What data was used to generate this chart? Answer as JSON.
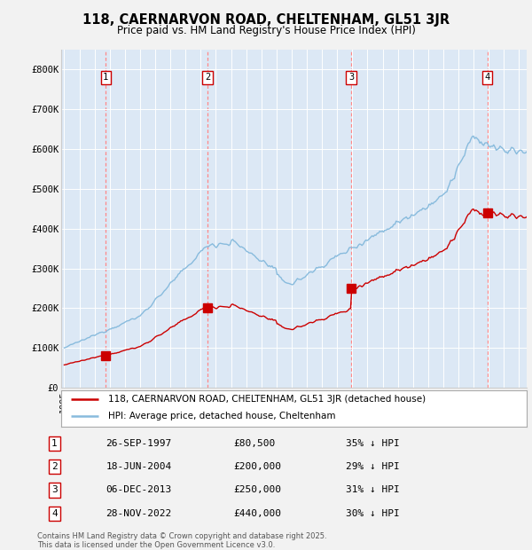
{
  "title": "118, CAERNARVON ROAD, CHELTENHAM, GL51 3JR",
  "subtitle": "Price paid vs. HM Land Registry's House Price Index (HPI)",
  "background_color": "#f2f2f2",
  "plot_bg_color": "#dce8f5",
  "ylim": [
    0,
    850000
  ],
  "yticks": [
    0,
    100000,
    200000,
    300000,
    400000,
    500000,
    600000,
    700000,
    800000
  ],
  "ytick_labels": [
    "£0",
    "£100K",
    "£200K",
    "£300K",
    "£400K",
    "£500K",
    "£600K",
    "£700K",
    "£800K"
  ],
  "xlim_start": 1994.8,
  "xlim_end": 2025.5,
  "sale_dates": [
    1997.74,
    2004.46,
    2013.92,
    2022.91
  ],
  "sale_prices": [
    80500,
    200000,
    250000,
    440000
  ],
  "sale_labels": [
    "1",
    "2",
    "3",
    "4"
  ],
  "sale_line_color": "#cc0000",
  "hpi_line_color": "#88bbdd",
  "sale_marker_color": "#cc0000",
  "vline_color": "#ff8888",
  "legend_entries": [
    "118, CAERNARVON ROAD, CHELTENHAM, GL51 3JR (detached house)",
    "HPI: Average price, detached house, Cheltenham"
  ],
  "table_rows": [
    [
      "1",
      "26-SEP-1997",
      "£80,500",
      "35% ↓ HPI"
    ],
    [
      "2",
      "18-JUN-2004",
      "£200,000",
      "29% ↓ HPI"
    ],
    [
      "3",
      "06-DEC-2013",
      "£250,000",
      "31% ↓ HPI"
    ],
    [
      "4",
      "28-NOV-2022",
      "£440,000",
      "30% ↓ HPI"
    ]
  ],
  "footer": "Contains HM Land Registry data © Crown copyright and database right 2025.\nThis data is licensed under the Open Government Licence v3.0."
}
